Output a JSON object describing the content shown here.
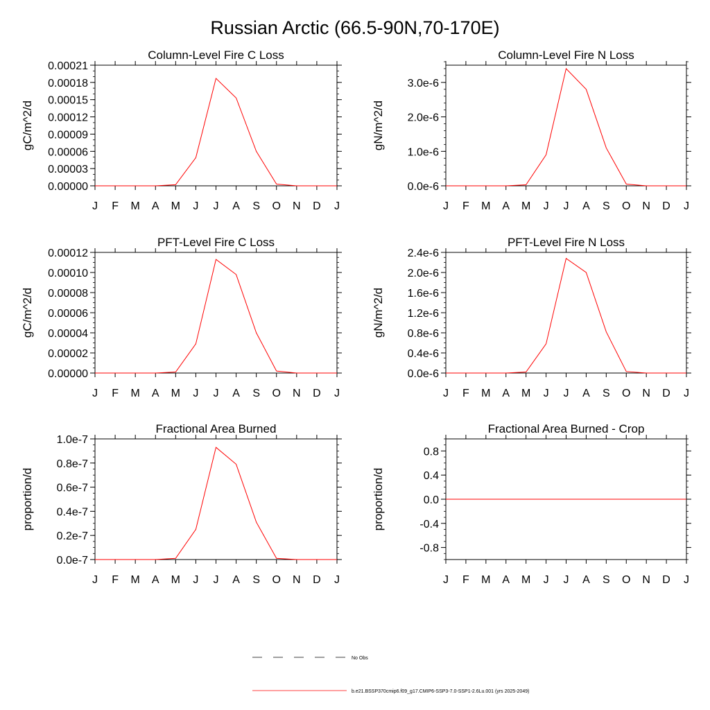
{
  "page": {
    "title": "Russian Arctic (66.5-90N,70-170E)"
  },
  "colors": {
    "series": "#ff0000",
    "axes": "#000000"
  },
  "legend": {
    "obs_label": "No Obs",
    "model_label": "b.e21.BSSP370cmip6.f09_g17.CMIP6-SSP3-7.0-SSP1-2.6Lu.001 (yrs 2025-2049)"
  },
  "chart_data": [
    {
      "type": "line",
      "title": "Column-Level Fire C Loss",
      "ylabel": "gC/m^2/d",
      "categories": [
        "J",
        "F",
        "M",
        "A",
        "M",
        "J",
        "J",
        "A",
        "S",
        "O",
        "N",
        "D",
        "J"
      ],
      "ylim": [
        0,
        0.00021
      ],
      "yticks": [
        0,
        3e-05,
        6e-05,
        9e-05,
        0.00012,
        0.00015,
        0.00018,
        0.00021
      ],
      "ytick_labels": [
        "0.00000",
        "0.00003",
        "0.00006",
        "0.00009",
        "0.00012",
        "0.00015",
        "0.00018",
        "0.00021"
      ],
      "yminor": 1e-05,
      "series": [
        {
          "values": [
            0,
            0,
            0,
            0,
            2e-06,
            4.9e-05,
            0.000187,
            0.000153,
            6e-05,
            3e-06,
            0,
            0,
            0
          ]
        }
      ]
    },
    {
      "type": "line",
      "title": "Column-Level Fire N Loss",
      "ylabel": "gN/m^2/d",
      "categories": [
        "J",
        "F",
        "M",
        "A",
        "M",
        "J",
        "J",
        "A",
        "S",
        "O",
        "N",
        "D",
        "J"
      ],
      "ylim": [
        0,
        3.5e-06
      ],
      "yticks": [
        0,
        1e-06,
        2e-06,
        3e-06
      ],
      "ytick_labels": [
        "0.0e-6",
        "1.0e-6",
        "2.0e-6",
        "3.0e-6"
      ],
      "yminor": 2e-07,
      "series": [
        {
          "values": [
            0,
            0,
            0,
            0,
            3e-08,
            9e-07,
            3.4e-06,
            2.8e-06,
            1.1e-06,
            5e-08,
            0,
            0,
            0
          ]
        }
      ]
    },
    {
      "type": "line",
      "title": "PFT-Level Fire C Loss",
      "ylabel": "gC/m^2/d",
      "categories": [
        "J",
        "F",
        "M",
        "A",
        "M",
        "J",
        "J",
        "A",
        "S",
        "O",
        "N",
        "D",
        "J"
      ],
      "ylim": [
        0,
        0.00012
      ],
      "yticks": [
        0,
        2e-05,
        4e-05,
        6e-05,
        8e-05,
        0.0001,
        0.00012
      ],
      "ytick_labels": [
        "0.00000",
        "0.00002",
        "0.00004",
        "0.00006",
        "0.00008",
        "0.00010",
        "0.00012"
      ],
      "yminor": 5e-06,
      "series": [
        {
          "values": [
            0,
            0,
            0,
            0,
            1e-06,
            2.9e-05,
            0.000113,
            9.8e-05,
            4e-05,
            2e-06,
            0,
            0,
            0
          ]
        }
      ]
    },
    {
      "type": "line",
      "title": "PFT-Level Fire N Loss",
      "ylabel": "gN/m^2/d",
      "categories": [
        "J",
        "F",
        "M",
        "A",
        "M",
        "J",
        "J",
        "A",
        "S",
        "O",
        "N",
        "D",
        "J"
      ],
      "ylim": [
        0,
        2.4e-06
      ],
      "yticks": [
        0,
        4e-07,
        8e-07,
        1.2e-06,
        1.6e-06,
        2e-06,
        2.4e-06
      ],
      "ytick_labels": [
        "0.0e-6",
        "0.4e-6",
        "0.8e-6",
        "1.2e-6",
        "1.6e-6",
        "2.0e-6",
        "2.4e-6"
      ],
      "yminor": 1e-07,
      "series": [
        {
          "values": [
            0,
            0,
            0,
            0,
            2e-08,
            5.8e-07,
            2.28e-06,
            2e-06,
            8.2e-07,
            3e-08,
            0,
            0,
            0
          ]
        }
      ]
    },
    {
      "type": "line",
      "title": "Fractional Area Burned",
      "ylabel": "proportion/d",
      "categories": [
        "J",
        "F",
        "M",
        "A",
        "M",
        "J",
        "J",
        "A",
        "S",
        "O",
        "N",
        "D",
        "J"
      ],
      "ylim": [
        0,
        1e-07
      ],
      "yticks": [
        0,
        2e-08,
        4e-08,
        6e-08,
        8e-08,
        1e-07
      ],
      "ytick_labels": [
        "0.0e-7",
        "0.2e-7",
        "0.4e-7",
        "0.6e-7",
        "0.8e-7",
        "1.0e-7"
      ],
      "yminor": 5e-09,
      "series": [
        {
          "values": [
            0,
            0,
            0,
            0,
            1e-09,
            2.5e-08,
            9.3e-08,
            7.9e-08,
            3.1e-08,
            1e-09,
            0,
            0,
            0
          ]
        }
      ]
    },
    {
      "type": "line",
      "title": "Fractional Area Burned - Crop",
      "ylabel": "proportion/d",
      "categories": [
        "J",
        "F",
        "M",
        "A",
        "M",
        "J",
        "J",
        "A",
        "S",
        "O",
        "N",
        "D",
        "J"
      ],
      "ylim": [
        -1,
        1
      ],
      "yticks": [
        -0.8,
        -0.4,
        0,
        0.4,
        0.8
      ],
      "ytick_labels": [
        "-0.8",
        "-0.4",
        "0.0",
        "0.4",
        "0.8"
      ],
      "yminor": 0.1,
      "series": [
        {
          "values": [
            0,
            0,
            0,
            0,
            0,
            0,
            0,
            0,
            0,
            0,
            0,
            0,
            0
          ]
        }
      ]
    }
  ]
}
